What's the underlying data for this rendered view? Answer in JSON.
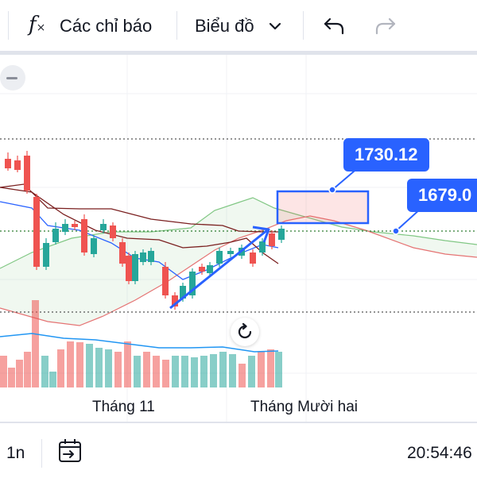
{
  "toolbar": {
    "indicators_label": "Các chỉ báo",
    "chart_type_label": "Biểu đồ",
    "colors": {
      "icon": "#131722",
      "disabled": "#b2b5be"
    }
  },
  "chart": {
    "colors": {
      "up": "#26a69a",
      "down": "#ef5350",
      "kijun": "#7a1f1f",
      "tenkan": "#2962ff",
      "senkou_a": "#81c784",
      "senkou_b": "#e57373",
      "chikou": "#90caf9",
      "volume_ma": "#2196f3",
      "accent": "#2962ff"
    },
    "price_labels": {
      "upper": "1730.12",
      "lower": "1679.0"
    },
    "x_labels": [
      "Tháng 11",
      "Tháng Mười hai"
    ]
  },
  "bottom_bar": {
    "interval": "1n",
    "time": "20:54:46"
  }
}
